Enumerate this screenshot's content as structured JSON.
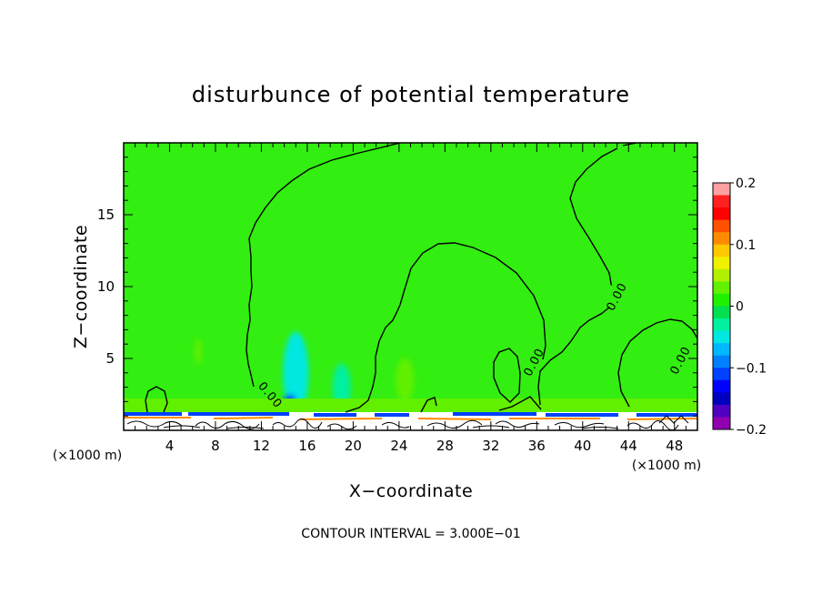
{
  "chart_data": {
    "type": "heatmap",
    "title": "disturbunce of potential temperature",
    "xlabel": "X−coordinate",
    "ylabel": "Z−coordinate",
    "x_unit_label": "(×1000 m)",
    "xlim": [
      0,
      50
    ],
    "ylim": [
      0,
      20
    ],
    "x_ticks": [
      4,
      8,
      12,
      16,
      20,
      24,
      28,
      32,
      36,
      40,
      44,
      48
    ],
    "y_ticks": [
      5,
      10,
      15
    ],
    "contour_interval_text": "CONTOUR INTERVAL = 3.000E−01",
    "contour_labels": [
      "0.00",
      "0.00",
      "0.00",
      "0.00"
    ],
    "colorbar": {
      "min": -0.2,
      "max": 0.2,
      "tick_values": [
        0.2,
        0.1,
        0,
        -0.1,
        -0.2
      ],
      "tick_labels": [
        "0.2",
        "0.1",
        "0",
        "−0.1",
        "−0.2"
      ],
      "colors": [
        "#ffa0a0",
        "#ff2020",
        "#ff0000",
        "#ff5000",
        "#ff8c00",
        "#ffc800",
        "#f0f000",
        "#b0f000",
        "#60f000",
        "#20f000",
        "#00e050",
        "#00f0a0",
        "#00e8e0",
        "#00b8ff",
        "#0080ff",
        "#0040ff",
        "#0000ff",
        "#0000c0",
        "#5000c0",
        "#9000b0"
      ]
    },
    "field_color_background": "#33ee11",
    "features": [
      {
        "x": 15.0,
        "z": 4.0,
        "value": -0.05
      },
      {
        "x": 14.5,
        "z": 1.5,
        "value": -0.1
      },
      {
        "x": 19.0,
        "z": 3.0,
        "value": -0.03
      },
      {
        "x": 24.5,
        "z": 3.5,
        "value": 0.03
      },
      {
        "x": 6.5,
        "z": 5.5,
        "value": 0.03
      },
      {
        "x": 34.0,
        "z": 1.2,
        "value": -0.03
      },
      {
        "x": 44.5,
        "z": 1.3,
        "value": -0.1
      }
    ]
  }
}
